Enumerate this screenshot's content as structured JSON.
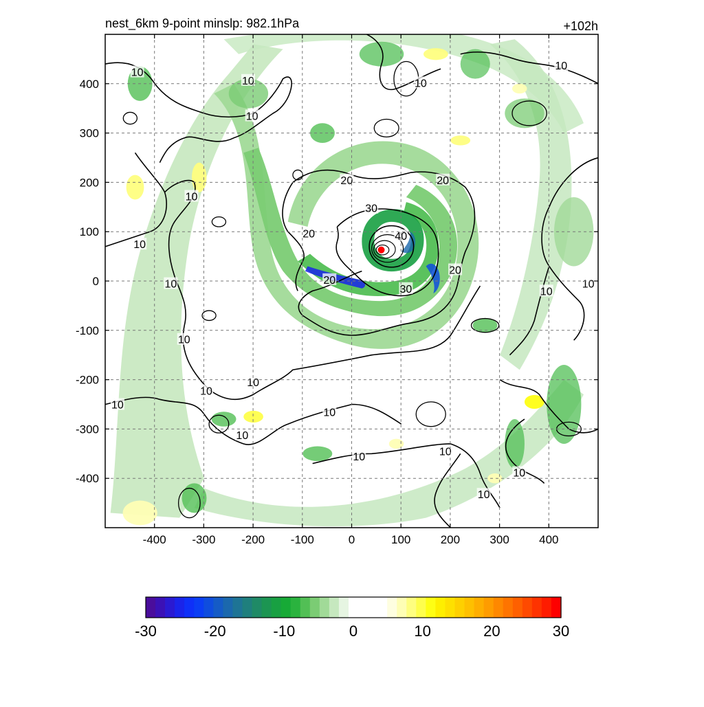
{
  "chart_data": {
    "type": "heatmap",
    "title_left": "nest_6km  9-point minslp: 982.1hPa",
    "title_right": "+102h",
    "xlabel": "",
    "ylabel": "",
    "xlim": [
      -500,
      500
    ],
    "ylim": [
      -500,
      500
    ],
    "x_ticks": [
      -400,
      -300,
      -200,
      -100,
      0,
      100,
      200,
      300,
      400
    ],
    "y_ticks": [
      -400,
      -300,
      -200,
      -100,
      0,
      100,
      200,
      300,
      400
    ],
    "grid": true,
    "storm_center": {
      "x": 60,
      "y": 63
    },
    "contour_levels": [
      10,
      20,
      30,
      40
    ],
    "contour_labels": [
      {
        "text": "10",
        "x": -435,
        "y": 424
      },
      {
        "text": "10",
        "x": -202,
        "y": 335
      },
      {
        "text": "10",
        "x": -210,
        "y": 407
      },
      {
        "text": "10",
        "x": -325,
        "y": 172
      },
      {
        "text": "10",
        "x": -430,
        "y": 75
      },
      {
        "text": "10",
        "x": -367,
        "y": -5
      },
      {
        "text": "10",
        "x": -340,
        "y": -118
      },
      {
        "text": "10",
        "x": -200,
        "y": -205
      },
      {
        "text": "10",
        "x": -295,
        "y": -222
      },
      {
        "text": "10",
        "x": -475,
        "y": -250
      },
      {
        "text": "10",
        "x": -222,
        "y": -312
      },
      {
        "text": "10",
        "x": -45,
        "y": -265
      },
      {
        "text": "10",
        "x": 15,
        "y": -355
      },
      {
        "text": "10",
        "x": 190,
        "y": -345
      },
      {
        "text": "10",
        "x": 268,
        "y": -432
      },
      {
        "text": "10",
        "x": 340,
        "y": -388
      },
      {
        "text": "10",
        "x": 425,
        "y": 437
      },
      {
        "text": "10",
        "x": 140,
        "y": 402
      },
      {
        "text": "10",
        "x": 395,
        "y": -20
      },
      {
        "text": "10",
        "x": 480,
        "y": -5
      },
      {
        "text": "20",
        "x": -10,
        "y": 205
      },
      {
        "text": "20",
        "x": 185,
        "y": 205
      },
      {
        "text": "20",
        "x": -87,
        "y": 97
      },
      {
        "text": "20",
        "x": -45,
        "y": 3
      },
      {
        "text": "20",
        "x": 210,
        "y": 23
      },
      {
        "text": "30",
        "x": 40,
        "y": 148
      },
      {
        "text": "30",
        "x": 110,
        "y": -15
      },
      {
        "text": "40",
        "x": 100,
        "y": 92
      }
    ],
    "colorbar": {
      "ticks": [
        -30,
        -20,
        -10,
        0,
        10,
        20,
        30
      ],
      "range": [
        -30,
        30
      ],
      "colors": [
        "#4a0d9c",
        "#3b11b6",
        "#2a1ad2",
        "#1a24ea",
        "#0f30f8",
        "#0b3ef4",
        "#0f4dde",
        "#155bc6",
        "#1b68ad",
        "#1e7495",
        "#1f7f7d",
        "#1f8a66",
        "#1c9552",
        "#18a042",
        "#17aa36",
        "#2ab33e",
        "#52bf55",
        "#7bcc74",
        "#a1da98",
        "#c6e8bf",
        "#e6f5e2",
        "#ffffff",
        "#ffffff",
        "#ffffff",
        "#ffffff",
        "#fefee0",
        "#fefeb5",
        "#fefe80",
        "#fefe4c",
        "#fefe14",
        "#feef00",
        "#fee000",
        "#fed000",
        "#fec000",
        "#feae00",
        "#fe9c00",
        "#fe8800",
        "#fe7400",
        "#fe6000",
        "#fe4a00",
        "#fe3300",
        "#fe1c00",
        "#fe0000"
      ]
    }
  }
}
